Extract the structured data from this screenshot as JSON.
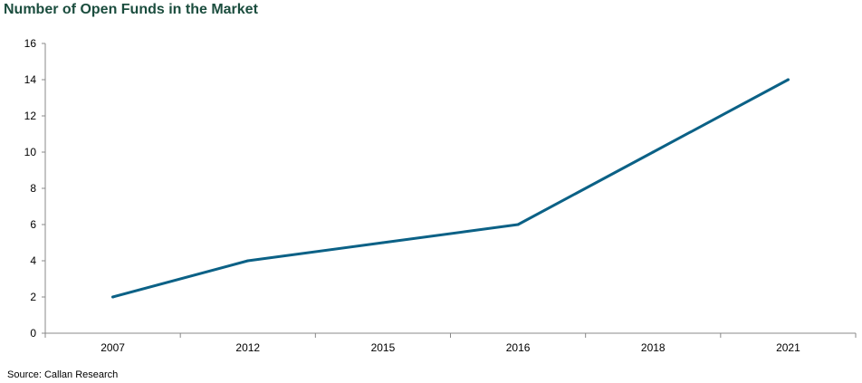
{
  "title": "Number of Open Funds in the Market",
  "source": "Source: Callan Research",
  "colors": {
    "line": "#0b6186",
    "title": "#1b4d3e",
    "axis": "#888888"
  },
  "chart_data": {
    "type": "line",
    "title": "Number of Open Funds in the Market",
    "xlabel": "",
    "ylabel": "",
    "categories": [
      "2007",
      "2012",
      "2015",
      "2016",
      "2018",
      "2021"
    ],
    "series": [
      {
        "values": [
          2,
          4,
          5,
          6,
          10,
          14
        ]
      }
    ],
    "ylim": [
      0,
      16
    ],
    "yticks": [
      0,
      2,
      4,
      6,
      8,
      10,
      12,
      14,
      16
    ],
    "grid": false,
    "legend": "none"
  }
}
